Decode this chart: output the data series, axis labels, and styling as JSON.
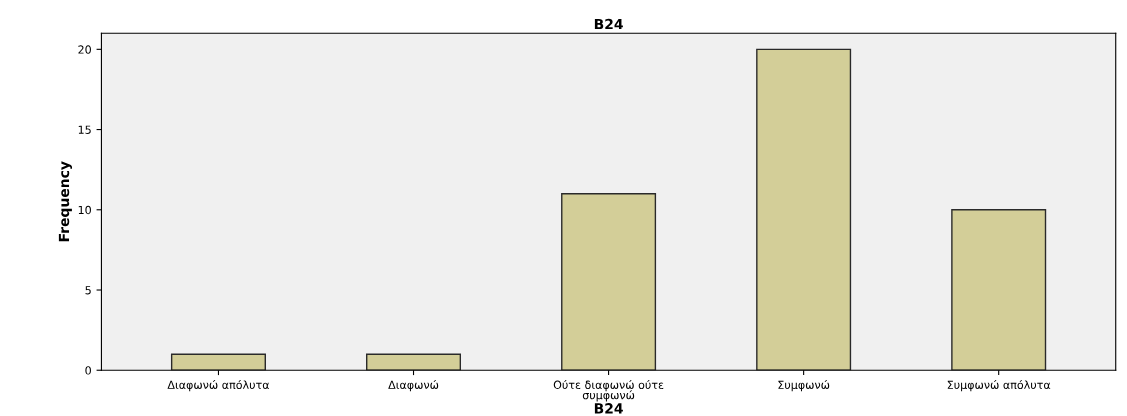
{
  "chart_data": {
    "type": "bar",
    "title": "B24",
    "xlabel": "B24",
    "ylabel": "Frequency",
    "categories": [
      "Διαφωνώ απόλυτα",
      "Διαφωνώ",
      "Ούτε διαφωνώ ούτε συμφωνώ",
      "Συμφωνώ",
      "Συμφωνώ απόλυτα"
    ],
    "values": [
      1,
      1,
      11,
      20,
      10
    ],
    "color": "#d3ce98",
    "ylim": [
      0,
      21
    ],
    "yticks": [
      0,
      5,
      10,
      15,
      20
    ],
    "grid": false
  }
}
